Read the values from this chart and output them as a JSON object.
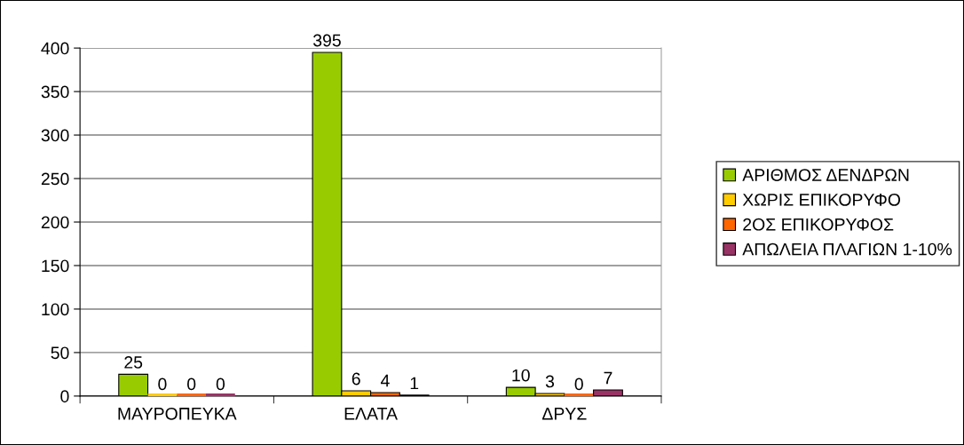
{
  "chart_data": {
    "type": "bar",
    "categories": [
      "ΜΑΥΡΟΠΕΥΚΑ",
      "ΕΛΑΤΑ",
      "ΔΡΥΣ"
    ],
    "series": [
      {
        "name": "ΑΡΙΘΜΟΣ ΔΕΝΔΡΩΝ",
        "color": "#99cc00",
        "values": [
          25,
          395,
          10
        ]
      },
      {
        "name": "ΧΩΡΙΣ ΕΠΙΚΟΡΥΦΟ",
        "color": "#ffcc00",
        "values": [
          0,
          6,
          3
        ]
      },
      {
        "name": "2ΟΣ ΕΠΙΚΟΡΥΦΟΣ",
        "color": "#ff6600",
        "values": [
          0,
          4,
          0
        ]
      },
      {
        "name": "ΑΠΩΛΕΙΑ ΠΛΑΓΙΩΝ 1-10%",
        "color": "#993366",
        "values": [
          0,
          1,
          7
        ]
      }
    ],
    "ylim": [
      0,
      400
    ],
    "yticks": [
      0,
      50,
      100,
      150,
      200,
      250,
      300,
      350,
      400
    ],
    "grid": "y",
    "legend": "right",
    "data_labels": true
  }
}
